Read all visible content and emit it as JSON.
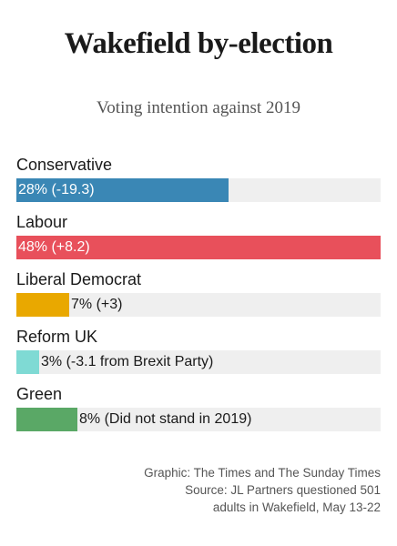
{
  "title": "Wakefield by-election",
  "subtitle": "Voting intention against 2019",
  "chart_data": {
    "type": "bar",
    "orientation": "horizontal",
    "categories": [
      "Conservative",
      "Labour",
      "Liberal Democrat",
      "Reform UK",
      "Green"
    ],
    "values": [
      28,
      48,
      7,
      3,
      8
    ],
    "data_labels": [
      "28% (-19.3)",
      "48% (+8.2)",
      "7% (+3)",
      "3% (-3.1 from Brexit Party)",
      "8% (Did not stand in 2019)"
    ],
    "colors": [
      "#3a87b5",
      "#e8505b",
      "#e9a800",
      "#7fdad4",
      "#5aa866"
    ],
    "xlim": [
      0,
      48
    ],
    "grid": false
  },
  "source": {
    "line1": "Graphic: The Times and The Sunday Times",
    "line2": "Source: JL Partners questioned 501",
    "line3": "adults in Wakefield, May 13-22"
  }
}
